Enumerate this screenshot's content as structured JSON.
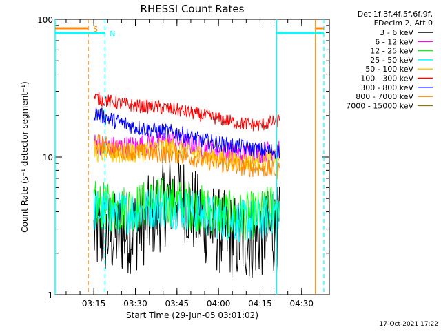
{
  "chart_data": {
    "type": "line",
    "title": "RHESSI Count Rates",
    "xlabel": "Start Time (29-Jun-05 03:01:02)",
    "ylabel": "Count Rate (s⁻¹ detector segment⁻¹)",
    "y_scale": "log",
    "ylim": [
      1,
      100
    ],
    "xlim": [
      "03:01:02",
      "04:40:00"
    ],
    "x_ticks": [
      "03:15",
      "03:30",
      "03:45",
      "04:00",
      "04:15",
      "04:30"
    ],
    "y_ticks": [
      "1",
      "10",
      "100"
    ],
    "grid": false,
    "legend_position": "right",
    "legend_header": [
      "Det 1f,3f,4f,5f,6f,9f,",
      "FDecim 2, Att 0"
    ],
    "series": [
      {
        "name": "3 - 6 keV",
        "color": "#000000",
        "x": [
          "03:15",
          "03:22",
          "03:30",
          "03:38",
          "03:45",
          "03:52",
          "04:00",
          "04:08",
          "04:15",
          "04:22"
        ],
        "values": [
          2.8,
          2.7,
          3.0,
          4.0,
          5.8,
          3.8,
          2.9,
          2.5,
          2.7,
          3.0
        ]
      },
      {
        "name": "6 - 12 keV",
        "color": "#ff00ff",
        "x": [
          "03:15",
          "03:22",
          "03:30",
          "03:38",
          "03:45",
          "03:52",
          "04:00",
          "04:08",
          "04:15",
          "04:22"
        ],
        "values": [
          12.5,
          11.8,
          12.0,
          13.0,
          13.0,
          12.0,
          11.0,
          10.5,
          10.8,
          11.5
        ]
      },
      {
        "name": "12 - 25 keV",
        "color": "#00ff00",
        "x": [
          "03:15",
          "03:22",
          "03:30",
          "03:38",
          "03:45",
          "03:52",
          "04:00",
          "04:08",
          "04:15",
          "04:22"
        ],
        "values": [
          4.5,
          4.2,
          4.3,
          4.8,
          4.7,
          4.3,
          3.9,
          3.7,
          3.8,
          4.6
        ]
      },
      {
        "name": "25 - 50 keV",
        "color": "#00ffff",
        "x": [
          "03:15",
          "03:22",
          "03:30",
          "03:38",
          "03:45",
          "03:52",
          "04:00",
          "04:08",
          "04:15",
          "04:22"
        ],
        "values": [
          4.1,
          3.9,
          4.0,
          4.4,
          4.3,
          4.0,
          3.6,
          3.4,
          3.5,
          4.2
        ]
      },
      {
        "name": "50 - 100 keV",
        "color": "#ffcc00",
        "x": [
          "03:15",
          "03:22",
          "03:30",
          "03:38",
          "03:45",
          "03:52",
          "04:00",
          "04:08",
          "04:15",
          "04:22"
        ],
        "values": [
          11.0,
          10.5,
          10.8,
          11.8,
          11.5,
          10.5,
          9.8,
          9.3,
          9.4,
          10.0
        ]
      },
      {
        "name": "100 - 300 keV",
        "color": "#ff0000",
        "x": [
          "03:15",
          "03:22",
          "03:30",
          "03:38",
          "03:45",
          "03:52",
          "04:00",
          "04:08",
          "04:15",
          "04:22"
        ],
        "values": [
          27.0,
          25.0,
          23.5,
          23.0,
          22.0,
          20.5,
          19.0,
          17.5,
          17.0,
          18.5
        ]
      },
      {
        "name": "300 - 800 keV",
        "color": "#0000ff",
        "x": [
          "03:15",
          "03:22",
          "03:30",
          "03:38",
          "03:45",
          "03:52",
          "04:00",
          "04:08",
          "04:15",
          "04:22"
        ],
        "values": [
          21.0,
          18.5,
          16.5,
          15.5,
          15.0,
          13.5,
          12.5,
          11.8,
          11.2,
          11.0
        ]
      },
      {
        "name": "800 - 7000 keV",
        "color": "#ff8800",
        "x": [
          "03:15",
          "03:22",
          "03:30",
          "03:38",
          "03:45",
          "03:52",
          "04:00",
          "04:08",
          "04:15",
          "04:22"
        ],
        "values": [
          13.0,
          11.5,
          10.8,
          10.6,
          10.5,
          9.8,
          9.0,
          8.5,
          8.3,
          8.0
        ]
      },
      {
        "name": "7000 - 15000 keV",
        "color": "#887700",
        "x": [],
        "values": []
      }
    ],
    "annotations": [
      {
        "label": "S",
        "color": "#ff8800",
        "x": "03:13",
        "top_bar": [
          "03:01:02",
          "03:13"
        ],
        "top_bar_right": [
          "04:35",
          "04:38"
        ]
      },
      {
        "label": "N",
        "color": "#00ffff",
        "x": "03:19",
        "top_bar": [
          "03:01:02",
          "03:19"
        ],
        "top_bar_right": [
          "04:21",
          "04:38"
        ]
      }
    ],
    "solid_lines": [
      {
        "color": "#00ffff",
        "x": "03:01:02"
      },
      {
        "color": "#00ffff",
        "x": "04:21"
      },
      {
        "color": "#ff8800",
        "x": "04:35"
      }
    ],
    "dashed_lines": [
      {
        "color": "#ff8800",
        "x": "03:13"
      },
      {
        "color": "#00ffff",
        "x": "03:19"
      },
      {
        "color": "#00ffff",
        "x": "04:38"
      }
    ],
    "footer_date": "17-Oct-2021 17:22"
  }
}
